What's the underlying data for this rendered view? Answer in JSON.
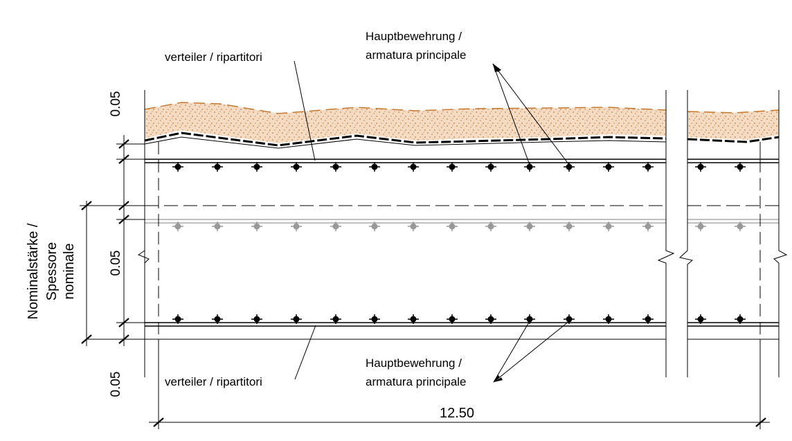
{
  "labels": {
    "top_left_distributor": "verteiler / ripartitori",
    "top_main_line1": "Hauptbewehrung /",
    "top_main_line2": "armatura principale",
    "bottom_main_line1": "Hauptbewehrung /",
    "bottom_main_line2": "armatura principale",
    "bottom_distributor": "verteiler / ripartitori",
    "nominal_line1": "Nominalstärke /",
    "nominal_line2": "Spessore",
    "nominal_line3": "nominale"
  },
  "dimensions": {
    "top_cover": "0.05",
    "middle": "0.05",
    "bottom_cover": "0.05",
    "span": "12.50"
  },
  "colors": {
    "line": "#000000",
    "gravel_fill": "#f3dcc3",
    "gravel_dots": "#c8782d",
    "grey_bars": "#999999"
  }
}
